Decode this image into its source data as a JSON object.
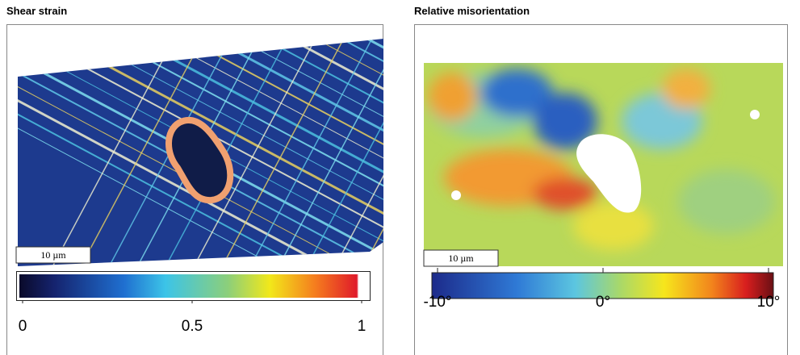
{
  "panels": [
    {
      "title": "Shear strain",
      "scale_bar": "10 µm",
      "colorbar": {
        "lim": [
          0,
          1
        ],
        "ticks": [
          0,
          0.5,
          1
        ]
      }
    },
    {
      "title": "Relative misorientation",
      "scale_bar": "10 µm",
      "colorbar": {
        "lim": [
          -10,
          10
        ],
        "ticks": [
          {
            "value": -10,
            "label": "-10°"
          },
          {
            "value": 0,
            "label": "0°"
          },
          {
            "value": 10,
            "label": "10°"
          }
        ]
      }
    }
  ]
}
